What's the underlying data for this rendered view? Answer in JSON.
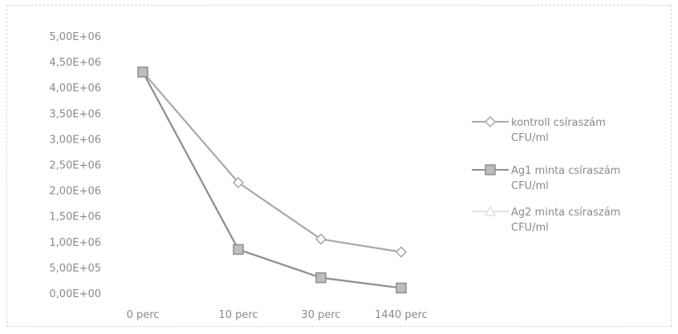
{
  "chart_data": {
    "type": "line",
    "title": "",
    "xlabel": "",
    "ylabel": "",
    "categories": [
      "0 perc",
      "10 perc",
      "30 perc",
      "1440 perc"
    ],
    "y_ticks": [
      "0,00E+00",
      "5,00E+05",
      "1,00E+06",
      "1,50E+06",
      "2,00E+06",
      "2,50E+06",
      "3,00E+06",
      "3,50E+06",
      "4,00E+06",
      "4,50E+06",
      "5,00E+06"
    ],
    "ylim": [
      0,
      5000000
    ],
    "grid": false,
    "legend_position": "right",
    "series": [
      {
        "name": "kontroll csíraszám CFU/ml",
        "legend_lines": [
          "kontroll csíraszám",
          "CFU/ml"
        ],
        "values": [
          4300000,
          2150000,
          1050000,
          800000
        ],
        "color": "#a8a8a8",
        "marker": "diamond"
      },
      {
        "name": "Ag1 minta csíraszám CFU/ml",
        "legend_lines": [
          "Ag1 minta csíraszám",
          "CFU/ml"
        ],
        "values": [
          4300000,
          850000,
          300000,
          100000
        ],
        "color": "#8e8e8e",
        "marker": "square"
      },
      {
        "name": "Ag2 minta csíraszám CFU/ml",
        "legend_lines": [
          "Ag2 minta csíraszám",
          "CFU/ml"
        ],
        "values": [
          4300000,
          850000,
          300000,
          100000
        ],
        "color": "#e2e2e2",
        "marker": "triangle"
      }
    ]
  }
}
